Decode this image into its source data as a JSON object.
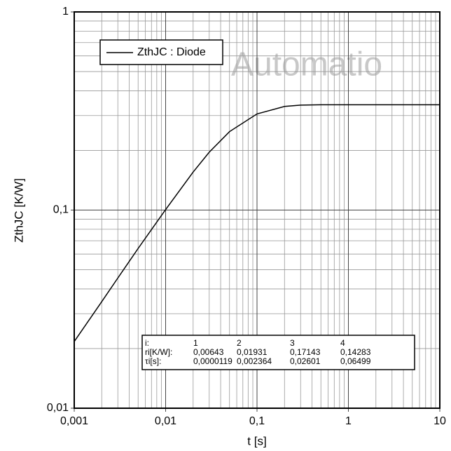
{
  "chart_data": {
    "type": "line",
    "xlabel": "t [s]",
    "ylabel": "ZthJC [K/W]",
    "watermark": "Automatio",
    "log_x": true,
    "log_y": true,
    "grid": true,
    "xlim": [
      0.001,
      10
    ],
    "ylim": [
      0.01,
      1
    ],
    "xticks": [
      {
        "value": 0.001,
        "label": "0,001"
      },
      {
        "value": 0.01,
        "label": "0,01"
      },
      {
        "value": 0.1,
        "label": "0,1"
      },
      1,
      10
    ],
    "yticks": [
      {
        "value": 0.01,
        "label": "0,01"
      },
      {
        "value": 0.1,
        "label": "0,1"
      },
      1
    ],
    "xminor": [
      0.002,
      0.003,
      0.004,
      0.005,
      0.006,
      0.007,
      0.008,
      0.009,
      0.02,
      0.03,
      0.04,
      0.05,
      0.06,
      0.07,
      0.08,
      0.09,
      0.2,
      0.3,
      0.4,
      0.5,
      0.6,
      0.7,
      0.8,
      0.9,
      2,
      3,
      4,
      5,
      6,
      7,
      8,
      9
    ],
    "yminor": [
      0.02,
      0.03,
      0.04,
      0.05,
      0.06,
      0.07,
      0.08,
      0.09,
      0.2,
      0.3,
      0.4,
      0.5,
      0.6,
      0.7,
      0.8,
      0.9
    ],
    "legend": "upper left",
    "series": [
      {
        "name": "ZthJC : Diode",
        "color": "#000000",
        "x": [
          0.001,
          0.002,
          0.003,
          0.005,
          0.01,
          0.02,
          0.03,
          0.05,
          0.1,
          0.2,
          0.3,
          0.5,
          1,
          10
        ],
        "values": [
          0.0217,
          0.0345,
          0.0454,
          0.064,
          0.1006,
          0.1555,
          0.1959,
          0.2488,
          0.3057,
          0.3333,
          0.3386,
          0.3399,
          0.34,
          0.34
        ]
      }
    ],
    "table": {
      "rows": [
        [
          "i:",
          "1",
          "2",
          "3",
          "4"
        ],
        [
          "ri[K/W]:",
          "0,00643",
          "0,01931",
          "0,17143",
          "0,14283"
        ],
        [
          "τi[s]:",
          "0,0000119",
          "0,002364",
          "0,02601",
          "0,06499"
        ]
      ]
    }
  }
}
